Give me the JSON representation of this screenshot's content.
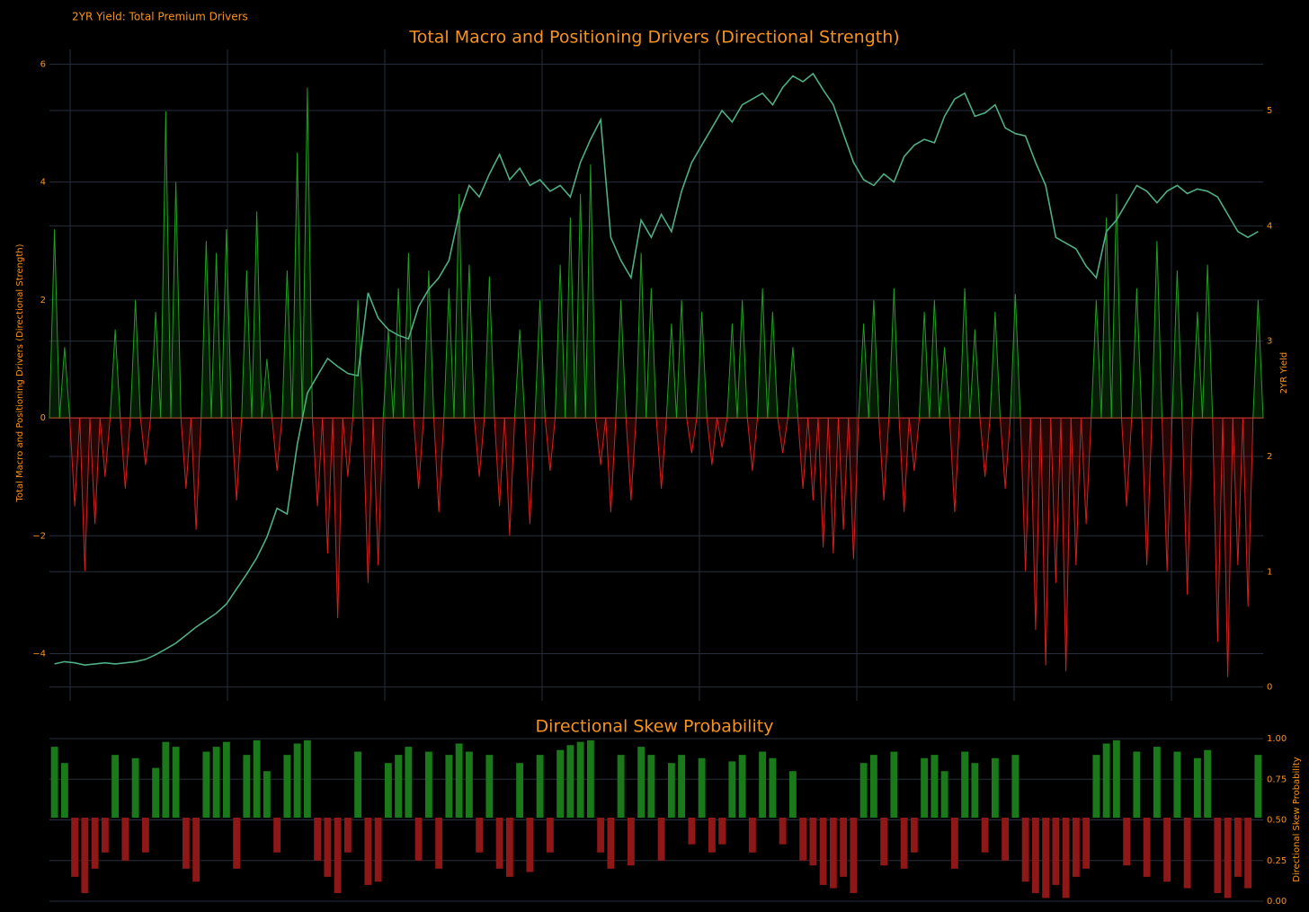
{
  "page_title": "2YR Yield: Total Premium Drivers",
  "chart_data": [
    {
      "type": "area",
      "title": "Total Macro and Positioning Drivers (Directional Strength)",
      "y_label": "Total Macro and Positioning Drivers (Directional Strength)",
      "y2_label": "2YR Yield",
      "ylim": [
        -4.8,
        6.25
      ],
      "yticks": [
        {
          "value": -4,
          "label": "−4"
        },
        {
          "value": -2,
          "label": "−2"
        },
        0,
        2,
        4,
        6
      ],
      "y2lim": [
        -0.12,
        5.53
      ],
      "y2ticks": [
        0,
        1,
        2,
        3,
        4,
        5
      ],
      "grid": true,
      "series": [
        {
          "color": "#1f9e1f",
          "negative_color": "#d61f1f",
          "values": [
            3.2,
            1.2,
            -1.5,
            -2.6,
            -1.8,
            -1.0,
            1.5,
            -1.2,
            2.0,
            -0.8,
            1.8,
            5.2,
            4.0,
            -1.2,
            -1.9,
            3.0,
            2.8,
            3.2,
            -1.4,
            2.5,
            3.5,
            1.0,
            -0.9,
            2.5,
            4.5,
            5.6,
            -1.5,
            -2.3,
            -3.4,
            -1.0,
            2.0,
            -2.8,
            -2.5,
            1.5,
            2.2,
            2.8,
            -1.2,
            2.5,
            -1.6,
            2.2,
            3.8,
            2.6,
            -1.0,
            2.4,
            -1.5,
            -2.0,
            1.5,
            -1.8,
            2.0,
            -0.9,
            2.6,
            3.4,
            3.8,
            4.3,
            -0.8,
            -1.6,
            2.0,
            -1.4,
            2.8,
            2.2,
            -1.2,
            1.6,
            2.0,
            -0.6,
            1.8,
            -0.8,
            -0.5,
            1.6,
            2.0,
            -0.9,
            2.2,
            1.8,
            -0.6,
            1.2,
            -1.2,
            -1.4,
            -2.2,
            -2.3,
            -1.9,
            -2.4,
            1.6,
            2.0,
            -1.4,
            2.2,
            -1.6,
            -0.9,
            1.8,
            2.0,
            1.2,
            -1.6,
            2.2,
            1.5,
            -1.0,
            1.8,
            -1.2,
            2.1,
            -2.6,
            -3.6,
            -4.2,
            -2.8,
            -4.3,
            -2.5,
            -1.8,
            2.0,
            3.4,
            3.8,
            -1.5,
            2.2,
            -2.5,
            3.0,
            -2.6,
            2.5,
            -3.0,
            1.8,
            2.6,
            -3.8,
            -4.4,
            -2.5,
            -3.2,
            2.0
          ]
        },
        {
          "axis": "y2",
          "type": "line",
          "color": "#4fae84",
          "values": [
            0.2,
            0.22,
            0.21,
            0.19,
            0.2,
            0.21,
            0.2,
            0.21,
            0.22,
            0.24,
            0.28,
            0.33,
            0.38,
            0.45,
            0.52,
            0.58,
            0.64,
            0.72,
            0.85,
            0.98,
            1.12,
            1.3,
            1.55,
            1.5,
            2.1,
            2.55,
            2.7,
            2.85,
            2.78,
            2.72,
            2.7,
            3.42,
            3.2,
            3.1,
            3.05,
            3.02,
            3.3,
            3.45,
            3.55,
            3.7,
            4.1,
            4.35,
            4.25,
            4.45,
            4.62,
            4.4,
            4.5,
            4.35,
            4.4,
            4.3,
            4.35,
            4.25,
            4.55,
            4.75,
            4.92,
            3.9,
            3.7,
            3.55,
            4.05,
            3.9,
            4.1,
            3.95,
            4.3,
            4.55,
            4.7,
            4.85,
            5.0,
            4.9,
            5.05,
            5.1,
            5.15,
            5.05,
            5.2,
            5.3,
            5.25,
            5.32,
            5.18,
            5.05,
            4.8,
            4.55,
            4.4,
            4.35,
            4.45,
            4.38,
            4.6,
            4.7,
            4.75,
            4.72,
            4.95,
            5.1,
            5.15,
            4.95,
            4.98,
            5.05,
            4.85,
            4.8,
            4.78,
            4.55,
            4.35,
            3.9,
            3.85,
            3.8,
            3.65,
            3.55,
            3.95,
            4.05,
            4.2,
            4.35,
            4.3,
            4.2,
            4.3,
            4.35,
            4.28,
            4.32,
            4.3,
            4.25,
            4.1,
            3.95,
            3.9,
            3.95
          ]
        }
      ]
    },
    {
      "type": "bar",
      "title": "Directional Skew Probability",
      "y2_label": "Directional Skew Probability",
      "ylim": [
        -0.011,
        1.039
      ],
      "yticks": [
        {
          "value": 0,
          "label": "0.00"
        },
        {
          "value": 0.25,
          "label": "0.25"
        },
        {
          "value": 0.5,
          "label": "0.50"
        },
        {
          "value": 0.75,
          "label": "0.75"
        },
        {
          "value": 1,
          "label": "1.00"
        }
      ],
      "grid": true,
      "color": "#1a7a1a",
      "negative_color": "#8e1717",
      "values": [
        0.95,
        0.85,
        0.15,
        0.05,
        0.2,
        0.3,
        0.9,
        0.25,
        0.88,
        0.3,
        0.82,
        0.98,
        0.95,
        0.2,
        0.12,
        0.92,
        0.95,
        0.98,
        0.2,
        0.9,
        0.99,
        0.8,
        0.3,
        0.9,
        0.97,
        0.99,
        0.25,
        0.15,
        0.05,
        0.3,
        0.92,
        0.1,
        0.12,
        0.85,
        0.9,
        0.95,
        0.25,
        0.92,
        0.2,
        0.9,
        0.97,
        0.92,
        0.3,
        0.9,
        0.2,
        0.15,
        0.85,
        0.18,
        0.9,
        0.3,
        0.93,
        0.96,
        0.98,
        0.99,
        0.3,
        0.2,
        0.9,
        0.22,
        0.95,
        0.9,
        0.25,
        0.85,
        0.9,
        0.35,
        0.88,
        0.3,
        0.35,
        0.86,
        0.9,
        0.3,
        0.92,
        0.88,
        0.35,
        0.8,
        0.25,
        0.22,
        0.1,
        0.08,
        0.15,
        0.05,
        0.85,
        0.9,
        0.22,
        0.92,
        0.2,
        0.3,
        0.88,
        0.9,
        0.8,
        0.2,
        0.92,
        0.85,
        0.3,
        0.88,
        0.25,
        0.9,
        0.12,
        0.05,
        0.02,
        0.1,
        0.02,
        0.15,
        0.2,
        0.9,
        0.97,
        0.99,
        0.22,
        0.92,
        0.15,
        0.95,
        0.12,
        0.92,
        0.08,
        0.88,
        0.93,
        0.05,
        0.02,
        0.15,
        0.08,
        0.9
      ]
    }
  ]
}
